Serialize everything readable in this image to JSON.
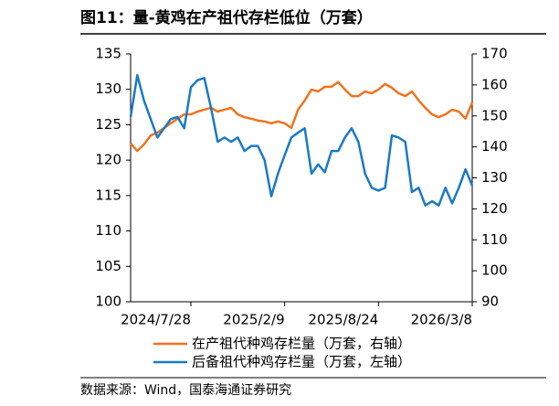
{
  "chart_data": {
    "type": "line",
    "title": "图11：量-黄鸡在产祖代存栏低位（万套）",
    "source": "数据来源：Wind，国泰海通证券研究",
    "x": [
      "2024/3/24",
      "2024/4/7",
      "2024/4/21",
      "2024/5/5",
      "2024/5/19",
      "2024/6/2",
      "2024/6/16",
      "2024/6/30",
      "2024/7/14",
      "2024/7/28",
      "2024/8/11",
      "2024/8/25",
      "2024/9/8",
      "2024/9/22",
      "2024/10/6",
      "2024/10/20",
      "2024/11/3",
      "2024/11/17",
      "2024/12/1",
      "2024/12/15",
      "2024/12/29",
      "2025/1/12",
      "2025/1/26",
      "2025/2/9",
      "2025/2/23",
      "2025/3/9",
      "2025/3/23",
      "2025/4/6",
      "2025/4/20",
      "2025/5/4",
      "2025/5/18",
      "2025/6/1",
      "2025/6/15",
      "2025/6/29",
      "2025/7/13",
      "2025/7/27",
      "2025/8/10",
      "2025/8/24",
      "2025/9/7",
      "2025/9/21",
      "2025/10/5",
      "2025/10/19",
      "2025/11/2",
      "2025/11/16",
      "2025/11/30",
      "2025/12/14",
      "2025/12/28",
      "2026/1/11",
      "2026/1/25",
      "2026/2/8",
      "2026/2/22",
      "2026/3/8"
    ],
    "series": [
      {
        "name": "在产祖代种鸡存栏量（万套，右轴）",
        "color": "#f0731e",
        "axis": "y2",
        "values": [
          141.1,
          138.7,
          140.8,
          143.7,
          144.6,
          146.1,
          147.6,
          149.1,
          150.5,
          150.5,
          151.4,
          152,
          152.6,
          151.4,
          152,
          152.6,
          150.5,
          149.6,
          149.1,
          148.5,
          148.2,
          147.6,
          148.2,
          147.6,
          146.1,
          152,
          155,
          158.5,
          157.9,
          159.4,
          159.4,
          160.9,
          158.5,
          156.4,
          156.4,
          157.9,
          157.3,
          158.5,
          160.3,
          159.1,
          157.3,
          156.4,
          157.9,
          155,
          152.6,
          150.5,
          149.6,
          150.5,
          152,
          151.4,
          149.1,
          154.4
        ]
      },
      {
        "name": "后备祖代种鸡存栏量（万套，左轴）",
        "color": "#1a7ac4",
        "values": [
          126.1,
          132,
          128.4,
          125.8,
          123.2,
          124.5,
          125.8,
          126.1,
          124.5,
          130.3,
          131.3,
          131.6,
          127.4,
          122.6,
          123.2,
          122.6,
          123.2,
          121.3,
          122,
          122,
          120,
          114.9,
          118.1,
          120.7,
          123.2,
          123.9,
          124.5,
          118.1,
          119.4,
          118.3,
          121.3,
          121.3,
          123.2,
          124.5,
          122.6,
          118.1,
          116.1,
          115.7,
          116.1,
          123.5,
          123.2,
          122.6,
          115.5,
          116.1,
          113.6,
          114.2,
          113.6,
          116.1,
          113.9,
          116.1,
          118.7,
          116.4
        ]
      }
    ],
    "xlim": [
      "2024/3/24",
      "2026/3/8"
    ],
    "xticks": [
      "2024/7/28",
      "2025/2/9",
      "2025/8/24",
      "2026/3/8"
    ],
    "ylim": [
      100,
      135
    ],
    "yticks": [
      100,
      105,
      110,
      115,
      120,
      125,
      130,
      135
    ],
    "y2lim": [
      90,
      170
    ],
    "y2ticks": [
      90,
      100,
      110,
      120,
      130,
      140,
      150,
      160,
      170
    ]
  }
}
